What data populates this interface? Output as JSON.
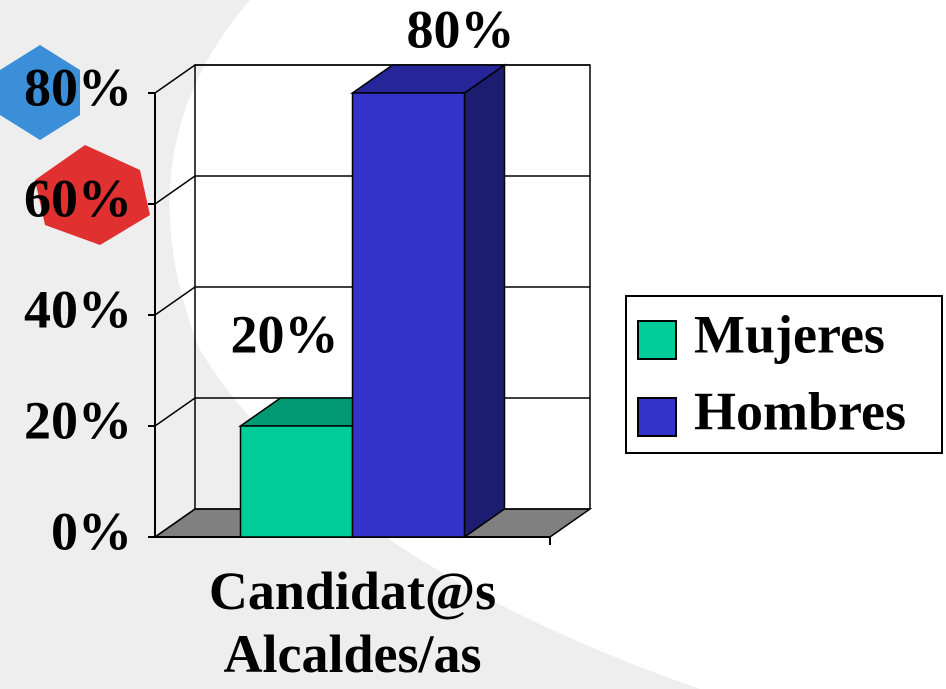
{
  "chart_data": {
    "type": "bar3d",
    "categories": [
      "Candidat@s Alcaldes/as"
    ],
    "series": [
      {
        "name": "Mujeres",
        "color": "#00cc99",
        "values": [
          20
        ],
        "value_labels": [
          "20%"
        ]
      },
      {
        "name": "Hombres",
        "color": "#3333cc",
        "values": [
          80
        ],
        "value_labels": [
          "80%"
        ]
      }
    ],
    "ylim": [
      0,
      80
    ],
    "yticks": [
      {
        "value": 0,
        "label": "0%"
      },
      {
        "value": 20,
        "label": "20%"
      },
      {
        "value": 40,
        "label": "40%"
      },
      {
        "value": 60,
        "label": "60%"
      },
      {
        "value": 80,
        "label": "80%"
      }
    ],
    "grid": true,
    "legend": "right"
  }
}
